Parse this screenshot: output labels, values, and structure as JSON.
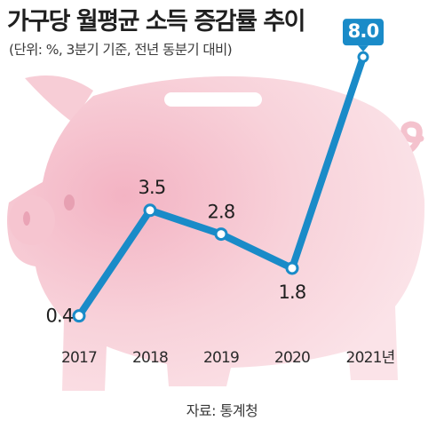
{
  "chart_data": {
    "type": "line",
    "title": "가구당 월평균 소득 증감률 추이",
    "subtitle": "(단위: %, 3분기 기준, 전년 동분기 대비)",
    "source": "자료: 통계청",
    "categories": [
      "2017",
      "2018",
      "2019",
      "2020",
      "2021년"
    ],
    "series": [
      {
        "values": [
          0.4,
          3.5,
          2.8,
          1.8,
          8.0
        ]
      }
    ],
    "data_labels": [
      "0.4",
      "3.5",
      "2.8",
      "1.8",
      "8.0"
    ],
    "ylim": [
      0,
      8.5
    ],
    "grid": false,
    "legend": "none",
    "highlight_last_point": true,
    "colors": {
      "line": "#1a8bc8",
      "highlight_box": "#1a8bc8",
      "piggy_body": "#f9d9df",
      "piggy_shade": "#f2b8c6",
      "text": "#1f1f1f"
    },
    "background_illustration": "piggy-bank"
  }
}
